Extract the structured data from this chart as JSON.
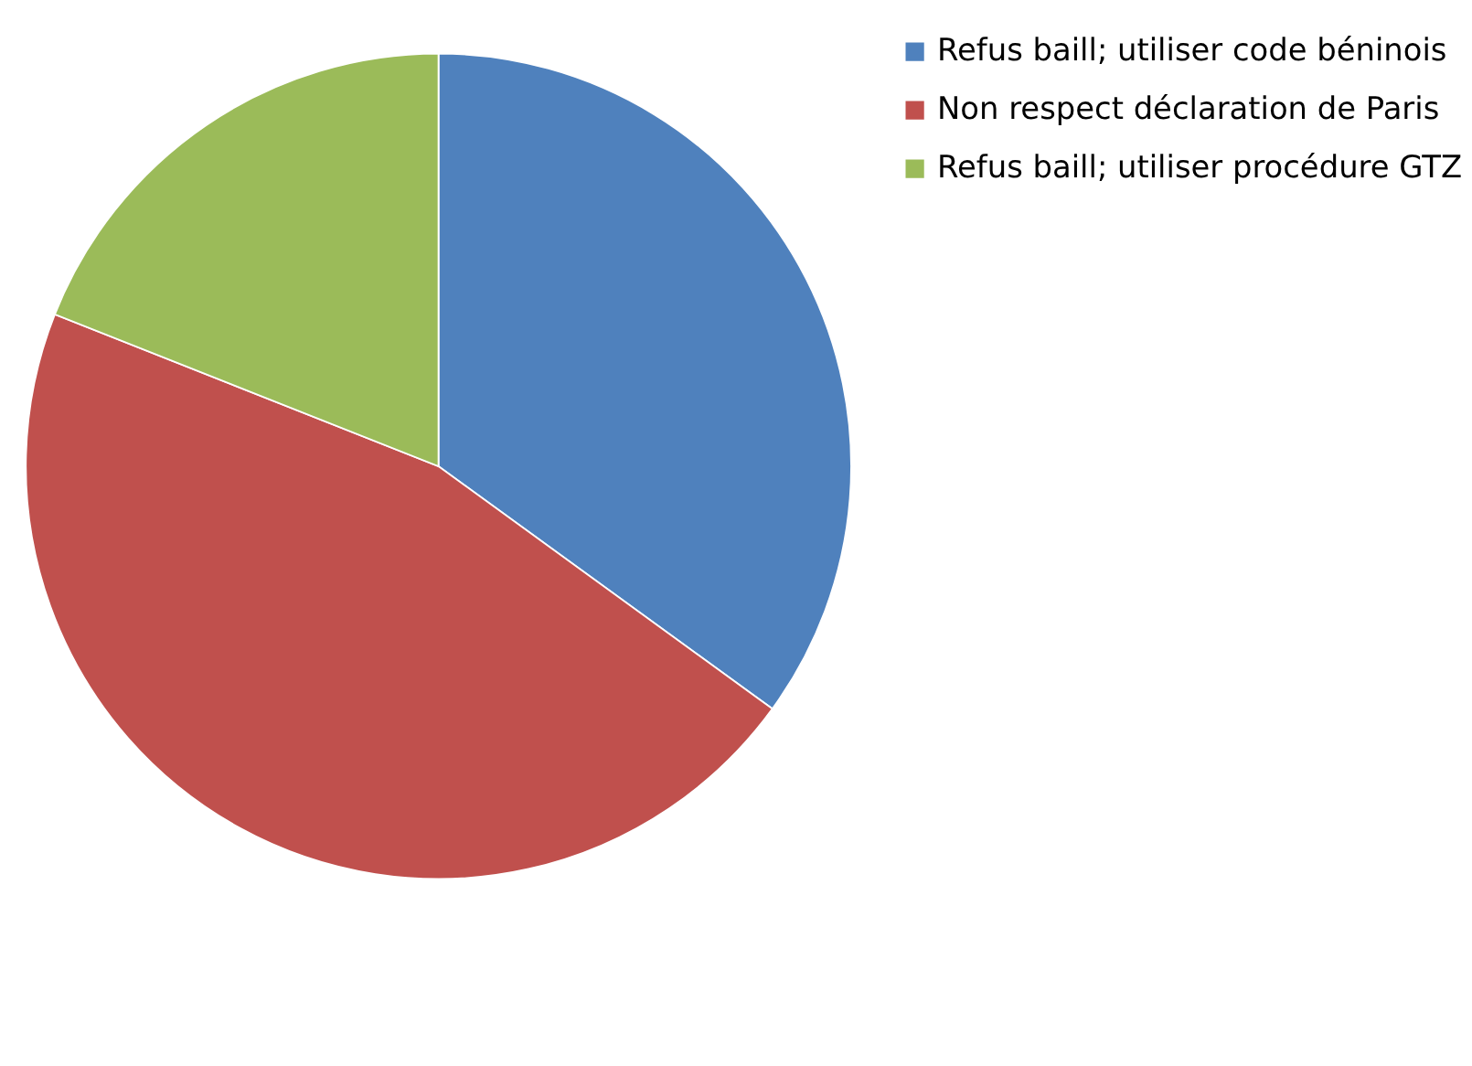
{
  "chart_data": {
    "type": "pie",
    "categories": [
      "Refus baill; utiliser code béninois",
      "Non respect déclaration de Paris",
      "Refus baill; utiliser procédure GTZ"
    ],
    "values": [
      35,
      46,
      19
    ],
    "colors": [
      "#4f81bd",
      "#c0504d",
      "#9bbb59"
    ],
    "legend": "right"
  }
}
